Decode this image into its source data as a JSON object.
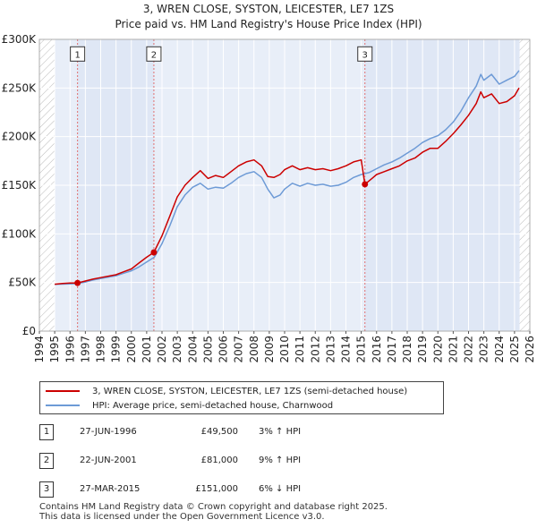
{
  "chart_data": {
    "type": "line",
    "title": "3, WREN CLOSE, SYSTON, LEICESTER, LE7 1ZS",
    "subtitle": "Price paid vs. HM Land Registry's House Price Index (HPI)",
    "xlim": [
      1994,
      2026
    ],
    "ylim": [
      0,
      300000
    ],
    "y_ticks": [
      0,
      50000,
      100000,
      150000,
      200000,
      250000,
      300000
    ],
    "y_tick_labels": [
      "£0",
      "£50K",
      "£100K",
      "£150K",
      "£200K",
      "£250K",
      "£300K"
    ],
    "x_tick_labels": [
      "1994",
      "1995",
      "1996",
      "1997",
      "1998",
      "1999",
      "2000",
      "2001",
      "2002",
      "2003",
      "2004",
      "2005",
      "2006",
      "2007",
      "2008",
      "2009",
      "2010",
      "2011",
      "2012",
      "2013",
      "2014",
      "2015",
      "2016",
      "2017",
      "2018",
      "2019",
      "2020",
      "2021",
      "2022",
      "2023",
      "2024",
      "2025",
      "2026"
    ],
    "data_range": [
      1995.0,
      2025.33
    ],
    "ownership_periods": [
      [
        1996.49,
        2001.47
      ],
      [
        2015.24,
        2025.33
      ]
    ],
    "series": [
      {
        "name": "3, WREN CLOSE, SYSTON, LEICESTER, LE7 1ZS (semi-detached house)",
        "color": "#cc0000",
        "x": [
          1995.0,
          1995.5,
          1996.0,
          1996.49,
          1997.0,
          1997.5,
          1998.0,
          1998.5,
          1999.0,
          1999.5,
          2000.0,
          2000.5,
          2001.0,
          2001.47,
          2002.0,
          2002.5,
          2003.0,
          2003.5,
          2004.0,
          2004.5,
          2005.0,
          2005.5,
          2006.0,
          2006.5,
          2007.0,
          2007.5,
          2008.0,
          2008.5,
          2008.9,
          2009.3,
          2009.7,
          2010.0,
          2010.5,
          2011.0,
          2011.5,
          2012.0,
          2012.5,
          2013.0,
          2013.5,
          2014.0,
          2014.5,
          2015.0,
          2015.24,
          2015.7,
          2016.0,
          2016.5,
          2017.0,
          2017.5,
          2018.0,
          2018.5,
          2019.0,
          2019.5,
          2020.0,
          2020.5,
          2021.0,
          2021.5,
          2022.0,
          2022.5,
          2022.8,
          2023.0,
          2023.5,
          2024.0,
          2024.5,
          2025.0,
          2025.3
        ],
        "y": [
          48200,
          49000,
          49500,
          49500,
          51500,
          53500,
          55000,
          56500,
          58000,
          61000,
          64000,
          70000,
          76000,
          81000,
          98000,
          118000,
          138000,
          150000,
          158000,
          165000,
          157000,
          160000,
          158000,
          164000,
          170000,
          174000,
          176000,
          170000,
          159000,
          158000,
          161000,
          166000,
          170000,
          166000,
          168000,
          166000,
          167000,
          165000,
          167000,
          170000,
          174000,
          176000,
          151000,
          157000,
          161000,
          164000,
          167000,
          170000,
          175000,
          178000,
          184000,
          188000,
          188000,
          195000,
          203000,
          212000,
          222000,
          234000,
          246000,
          240000,
          244000,
          234000,
          236000,
          242000,
          250000
        ]
      },
      {
        "name": "HPI: Average price, semi-detached house, Charnwood",
        "color": "#6d9ad6",
        "x": [
          1995.0,
          1995.5,
          1996.0,
          1996.5,
          1997.0,
          1997.5,
          1998.0,
          1998.5,
          1999.0,
          1999.5,
          2000.0,
          2000.5,
          2001.0,
          2001.5,
          2002.0,
          2002.5,
          2003.0,
          2003.5,
          2004.0,
          2004.5,
          2005.0,
          2005.5,
          2006.0,
          2006.5,
          2007.0,
          2007.5,
          2008.0,
          2008.5,
          2008.9,
          2009.3,
          2009.7,
          2010.0,
          2010.5,
          2011.0,
          2011.5,
          2012.0,
          2012.5,
          2013.0,
          2013.5,
          2014.0,
          2014.5,
          2015.0,
          2015.5,
          2016.0,
          2016.5,
          2017.0,
          2017.5,
          2018.0,
          2018.5,
          2019.0,
          2019.5,
          2020.0,
          2020.5,
          2021.0,
          2021.5,
          2022.0,
          2022.5,
          2022.8,
          2023.0,
          2023.5,
          2024.0,
          2024.5,
          2025.0,
          2025.3
        ],
        "y": [
          48000,
          48300,
          48600,
          49000,
          50500,
          52500,
          54000,
          55500,
          57000,
          59500,
          62000,
          66000,
          71000,
          76000,
          90000,
          108000,
          128000,
          140000,
          148000,
          152000,
          146000,
          148000,
          147000,
          152000,
          158000,
          162000,
          164000,
          158000,
          146000,
          137000,
          140000,
          146000,
          152000,
          149000,
          152000,
          150000,
          151000,
          149000,
          150000,
          153000,
          158000,
          161000,
          163000,
          167000,
          171000,
          174000,
          178000,
          183000,
          188000,
          194000,
          198000,
          201000,
          207000,
          215000,
          226000,
          240000,
          252000,
          264000,
          258000,
          264000,
          254000,
          258000,
          262000,
          268000
        ]
      }
    ],
    "sales": [
      {
        "label": "1",
        "x": 1996.49,
        "y": 49500
      },
      {
        "label": "2",
        "x": 2001.47,
        "y": 81000
      },
      {
        "label": "3",
        "x": 2015.24,
        "y": 151000
      }
    ],
    "marker_labels_y_value": 285000
  },
  "legend": {
    "property_label": "3, WREN CLOSE, SYSTON, LEICESTER, LE7 1ZS (semi-detached house)",
    "hpi_label": "HPI: Average price, semi-detached house, Charnwood",
    "property_color": "#cc0000",
    "hpi_color": "#6d9ad6"
  },
  "sales_table": [
    {
      "num": "1",
      "date": "27-JUN-1996",
      "price": "£49,500",
      "hpi": "3% ↑ HPI"
    },
    {
      "num": "2",
      "date": "22-JUN-2001",
      "price": "£81,000",
      "hpi": "9% ↑ HPI"
    },
    {
      "num": "3",
      "date": "27-MAR-2015",
      "price": "£151,000",
      "hpi": "6% ↓ HPI"
    }
  ],
  "footer": {
    "line1": "Contains HM Land Registry data © Crown copyright and database right 2025.",
    "line2": "This data is licensed under the Open Government Licence v3.0."
  },
  "colors": {
    "plot_background": "#e8eef8",
    "ownership_shade": "#dfe7f5",
    "grid": "#ffffff",
    "hatch": "#bbbbbb",
    "marker_line": "#e07070"
  }
}
